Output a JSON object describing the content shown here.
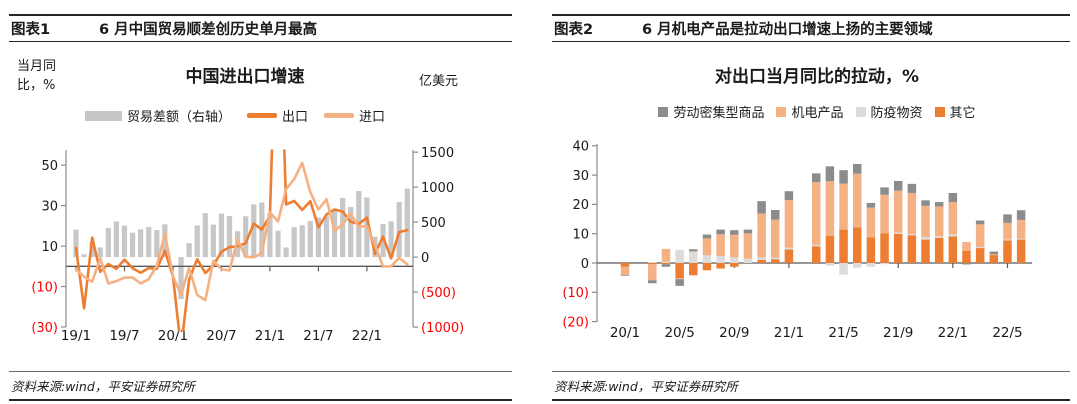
{
  "colors": {
    "accent_dark_orange": "#ED7D31",
    "accent_light_orange": "#F4B183",
    "bar_gray": "#C7C7C7",
    "labor_gray": "#8C8C8C",
    "ppe_light_gray": "#DCDCDC",
    "negative_label_red": "#FF0000",
    "axis_gray": "#8C8C8C",
    "zero_line": "#595959",
    "text": "#1A1A1A"
  },
  "panels": {
    "left": {
      "tag": "图表1",
      "title": "6 月中国贸易顺差创历史单月最高",
      "source": "资料来源:wind，平安证券研究所"
    },
    "right": {
      "tag": "图表2",
      "title": "6 月机电产品是拉动出口增速上扬的主要领域",
      "source": "资料来源:wind，平安证券研究所"
    }
  },
  "chart_data": [
    {
      "type": "combo-bar-line",
      "title": "中国进出口增速",
      "left_axis": {
        "label": "当月同比，%",
        "ticks": [
          50,
          30,
          10,
          -10,
          -30
        ],
        "range": [
          -30,
          57.5
        ]
      },
      "right_axis": {
        "label": "亿美元",
        "ticks": [
          1500,
          1000,
          500,
          0,
          -500,
          -1000
        ],
        "range": [
          -1000,
          1530
        ]
      },
      "x_tick_labels": [
        "19/1",
        "19/7",
        "20/1",
        "20/7",
        "21/1",
        "21/7",
        "22/1"
      ],
      "x": [
        "19/1",
        "19/2",
        "19/3",
        "19/4",
        "19/5",
        "19/6",
        "19/7",
        "19/8",
        "19/9",
        "19/10",
        "19/11",
        "19/12",
        "20/1",
        "20/2",
        "20/3",
        "20/4",
        "20/5",
        "20/6",
        "20/7",
        "20/8",
        "20/9",
        "20/10",
        "20/11",
        "20/12",
        "21/1",
        "21/2",
        "21/3",
        "21/4",
        "21/5",
        "21/6",
        "21/7",
        "21/8",
        "21/9",
        "21/10",
        "21/11",
        "21/12",
        "22/1",
        "22/2",
        "22/3",
        "22/4",
        "22/5",
        "22/6"
      ],
      "series": [
        {
          "name": "贸易差额（右轴）",
          "type": "bar",
          "axis": "right",
          "color": "#C7C7C7",
          "values": [
            391,
            41,
            221,
            138,
            417,
            509,
            450,
            348,
            396,
            428,
            387,
            468,
            null,
            -600,
            199,
            453,
            629,
            464,
            623,
            589,
            370,
            584,
            754,
            781,
            632,
            378,
            138,
            429,
            455,
            515,
            566,
            583,
            668,
            845,
            717,
            944,
            851,
            290,
            474,
            511,
            788,
            979
          ]
        },
        {
          "name": "出口",
          "type": "line",
          "axis": "left",
          "color": "#ED7D31",
          "values": [
            9.1,
            -20.8,
            14.2,
            -2.7,
            1.1,
            -1.3,
            3.3,
            -1.0,
            -3.2,
            -0.9,
            -1.3,
            7.6,
            -5.0,
            -40.6,
            -6.6,
            3.5,
            -3.3,
            0.5,
            7.2,
            9.5,
            9.9,
            11.4,
            21.1,
            18.1,
            24.8,
            154.8,
            30.6,
            32.3,
            27.9,
            32.2,
            19.3,
            25.6,
            28.1,
            27.1,
            22.0,
            20.9,
            24.1,
            6.2,
            14.7,
            3.9,
            16.9,
            17.9
          ]
        },
        {
          "name": "进口",
          "type": "line",
          "axis": "left",
          "color": "#F4B183",
          "values": [
            -1.5,
            -5.2,
            -7.6,
            4.0,
            -8.5,
            -7.3,
            -5.6,
            -5.6,
            -8.5,
            -6.4,
            0.3,
            16.2,
            -5.0,
            -14.0,
            -0.9,
            -14.2,
            -16.7,
            2.7,
            -1.4,
            -2.1,
            13.2,
            4.7,
            4.5,
            6.5,
            26.6,
            22.2,
            38.1,
            43.1,
            51.1,
            36.7,
            28.1,
            33.1,
            17.6,
            20.6,
            26.0,
            19.5,
            19.9,
            10.4,
            -0.1,
            0.0,
            4.1,
            1.0
          ]
        }
      ]
    },
    {
      "type": "stacked-bar",
      "title": "对出口当月同比的拉动，%",
      "y_axis": {
        "ticks": [
          40,
          30,
          20,
          10,
          0,
          -10,
          -20
        ],
        "range": [
          -20,
          40.5
        ]
      },
      "x_tick_labels": [
        "20/1",
        "20/5",
        "20/9",
        "21/1",
        "21/5",
        "21/9",
        "22/1",
        "22/5"
      ],
      "x": [
        "20/1",
        "20/3",
        "20/4",
        "20/5",
        "20/6",
        "20/7",
        "20/8",
        "20/9",
        "20/10",
        "20/11",
        "20/12",
        "21/1",
        "21/3",
        "21/4",
        "21/5",
        "21/6",
        "21/7",
        "21/8",
        "21/9",
        "21/10",
        "21/11",
        "21/12",
        "22/1",
        "22/2",
        "22/3",
        "22/4",
        "22/5",
        "22/6"
      ],
      "stack_order_bottom_to_top": [
        "其它",
        "防疫物资",
        "机电产品",
        "劳动密集型商品"
      ],
      "series": [
        {
          "name": "劳动密集型商品",
          "color": "#8C8C8C",
          "values": [
            -0.2,
            -1.0,
            -0.9,
            -2.3,
            0.7,
            1.3,
            1.6,
            1.6,
            1.3,
            4.2,
            3.3,
            3.0,
            3.0,
            5.1,
            4.6,
            3.3,
            1.6,
            2.5,
            3.3,
            3.1,
            1.9,
            1.5,
            3.1,
            -0.5,
            1.3,
            0.9,
            2.9,
            3.3
          ]
        },
        {
          "name": "机电产品",
          "color": "#F4B183",
          "values": [
            -3.0,
            -5.5,
            4.4,
            -0.3,
            0.2,
            5.8,
            7.4,
            7.7,
            8.6,
            15.0,
            13.0,
            16.3,
            21.4,
            18.7,
            15.7,
            18.4,
            10.1,
            13.2,
            14.3,
            14.0,
            10.7,
            10.2,
            11.0,
            3.0,
            7.7,
            0.3,
            5.7,
            6.4
          ]
        },
        {
          "name": "防疫物资",
          "color": "#DCDCDC",
          "values": [
            0.0,
            0.3,
            0.4,
            4.5,
            3.8,
            2.6,
            2.4,
            1.9,
            1.5,
            0.8,
            0.5,
            0.6,
            0.5,
            -0.9,
            -4.0,
            -1.6,
            -1.3,
            -0.4,
            0.5,
            0.4,
            0.8,
            0.5,
            0.7,
            0.0,
            0.4,
            0.0,
            0.3,
            0.3
          ]
        },
        {
          "name": "其它",
          "color": "#ED7D31",
          "values": [
            -1.2,
            -0.4,
            -0.4,
            -5.2,
            -4.2,
            -2.5,
            -1.9,
            -1.3,
            0.0,
            1.1,
            1.3,
            4.6,
            5.7,
            9.2,
            11.4,
            12.1,
            8.8,
            10.1,
            9.9,
            9.5,
            8.0,
            8.6,
            9.1,
            4.2,
            5.1,
            2.7,
            7.7,
            8.0
          ]
        }
      ]
    }
  ]
}
